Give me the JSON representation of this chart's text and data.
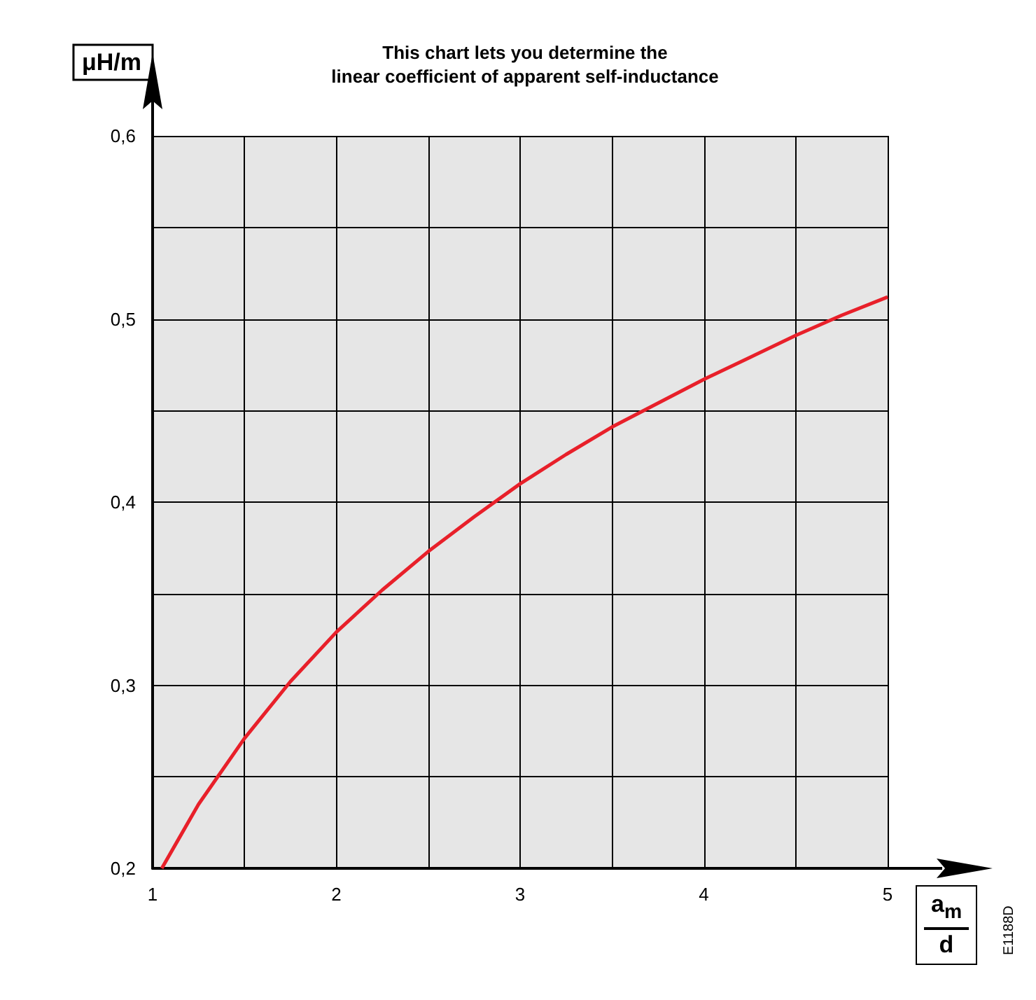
{
  "chart_data": {
    "type": "line",
    "title": "This chart lets you determine the\nlinear coefficient of apparent self-inductance",
    "xlabel": "a$_{m}$\nd",
    "ylabel": "μH/m",
    "annotations": [
      "E1188D"
    ],
    "x": [
      1.05,
      1.25,
      1.5,
      1.75,
      2,
      2.25,
      2.5,
      2.75,
      3,
      3.25,
      3.5,
      3.75,
      4,
      4.25,
      4.5,
      4.75,
      5
    ],
    "series": [
      {
        "color": "#e8202a",
        "values": [
          0.2,
          0.235,
          0.271,
          0.302,
          0.329,
          0.352,
          0.373,
          0.392,
          0.41,
          0.426,
          0.441,
          0.454,
          0.467,
          0.479,
          0.491,
          0.502,
          0.512
        ]
      }
    ],
    "xlim": [
      1,
      5
    ],
    "xticks": [
      1,
      {
        "value": 1.5,
        "label": null
      },
      2,
      {
        "value": 2.5,
        "label": null
      },
      3,
      {
        "value": 3.5,
        "label": null
      },
      4,
      {
        "value": 4.5,
        "label": null
      },
      5
    ],
    "ylim": [
      0.2,
      0.6
    ],
    "yticks": [
      {
        "value": 0.2,
        "label": "0,2"
      },
      {
        "value": 0.25,
        "label": null
      },
      {
        "value": 0.3,
        "label": "0,3"
      },
      {
        "value": 0.35,
        "label": null
      },
      {
        "value": 0.4,
        "label": "0,4"
      },
      {
        "value": 0.45,
        "label": null
      },
      {
        "value": 0.5,
        "label": "0,5"
      },
      {
        "value": 0.55,
        "label": null
      },
      {
        "value": 0.6,
        "label": "0,6"
      }
    ],
    "grid": true,
    "marker": "none",
    "line_style": "solid"
  }
}
